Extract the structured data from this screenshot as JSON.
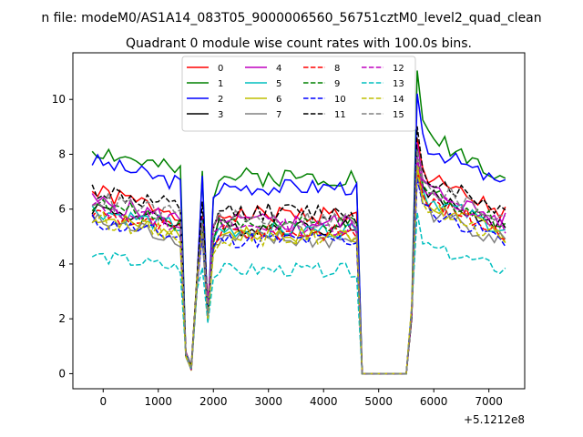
{
  "chart_data": {
    "type": "line",
    "suptitle": "n file: modeM0/AS1A14_083T05_9000006560_56751cztM0_level2_quad_clean",
    "title": "Quadrant 0 module wise count rates with 100.0s bins.",
    "xlabel": "",
    "ylabel": "",
    "x_offset_label": "+5.1212e8",
    "xlim": [
      -550,
      7650
    ],
    "ylim": [
      -0.55,
      11.7
    ],
    "xticks": [
      0,
      1000,
      2000,
      3000,
      4000,
      5000,
      6000,
      7000
    ],
    "yticks": [
      0,
      2,
      4,
      6,
      8,
      10
    ],
    "legend_location": "upper center",
    "legend_columns": 4,
    "series": [
      {
        "name": "0",
        "color": "#ff0000",
        "dash": "solid",
        "base": 6.3,
        "jitter": 0.35,
        "seed": 1
      },
      {
        "name": "1",
        "color": "#008000",
        "dash": "solid",
        "base": 7.8,
        "jitter": 0.35,
        "seed": 2
      },
      {
        "name": "2",
        "color": "#0000ff",
        "dash": "solid",
        "base": 7.4,
        "jitter": 0.3,
        "seed": 3
      },
      {
        "name": "3",
        "color": "#000000",
        "dash": "solid",
        "base": 5.8,
        "jitter": 0.3,
        "seed": 4
      },
      {
        "name": "4",
        "color": "#bf00bf",
        "dash": "solid",
        "base": 6.0,
        "jitter": 0.35,
        "seed": 5
      },
      {
        "name": "5",
        "color": "#00bfbf",
        "dash": "solid",
        "base": 5.7,
        "jitter": 0.3,
        "seed": 6
      },
      {
        "name": "6",
        "color": "#bfbf00",
        "dash": "solid",
        "base": 5.5,
        "jitter": 0.3,
        "seed": 7
      },
      {
        "name": "7",
        "color": "#808080",
        "dash": "solid",
        "base": 5.3,
        "jitter": 0.35,
        "seed": 8
      },
      {
        "name": "8",
        "color": "#ff0000",
        "dash": "dashed",
        "base": 5.6,
        "jitter": 0.3,
        "seed": 9
      },
      {
        "name": "9",
        "color": "#008000",
        "dash": "dashed",
        "base": 5.9,
        "jitter": 0.3,
        "seed": 10
      },
      {
        "name": "10",
        "color": "#0000ff",
        "dash": "dashed",
        "base": 5.3,
        "jitter": 0.3,
        "seed": 11
      },
      {
        "name": "11",
        "color": "#000000",
        "dash": "dashed",
        "base": 6.4,
        "jitter": 0.35,
        "seed": 12
      },
      {
        "name": "12",
        "color": "#bf00bf",
        "dash": "dashed",
        "base": 5.8,
        "jitter": 0.3,
        "seed": 13
      },
      {
        "name": "13",
        "color": "#00bfbf",
        "dash": "dashed",
        "base": 4.1,
        "jitter": 0.25,
        "seed": 14
      },
      {
        "name": "14",
        "color": "#bfbf00",
        "dash": "dashed",
        "base": 5.4,
        "jitter": 0.3,
        "seed": 15
      },
      {
        "name": "15",
        "color": "#808080",
        "dash": "dashed",
        "base": 6.1,
        "jitter": 0.35,
        "seed": 16
      }
    ]
  }
}
